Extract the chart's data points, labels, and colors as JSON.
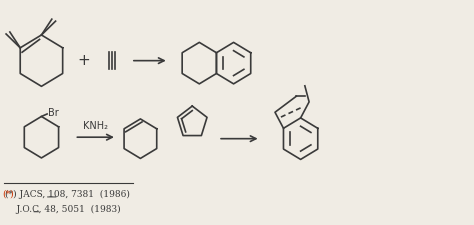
{
  "bg_color": "#f0ece4",
  "line_color": "#3a3a3a",
  "text_color": "#3a3a3a",
  "figsize": [
    4.74,
    2.25
  ],
  "dpi": 100,
  "ref_line1": "(*) JACS, 108, 7381  (1986)",
  "ref_line2": "    J.O.C, 48, 5051  (1983)",
  "label_knh2": "KNH₂",
  "label_br": "Br",
  "label_plus": "+",
  "arrow_color": "#3a3a3a"
}
